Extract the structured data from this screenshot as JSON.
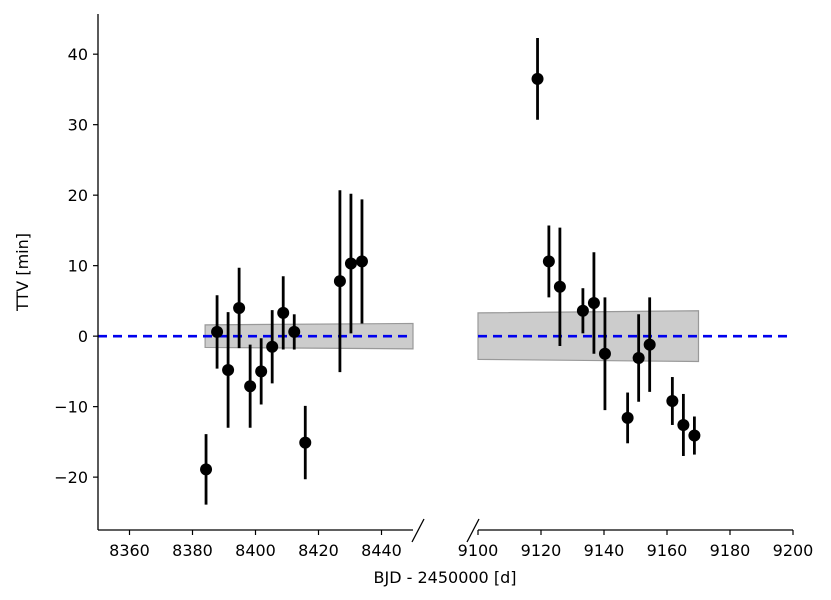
{
  "chart_data": [
    {
      "type": "scatter",
      "panel": "left",
      "xlabel": "",
      "ylabel": "TTV [min]",
      "xlim": [
        8350,
        8450
      ],
      "ylim": [
        -27.5,
        45.7
      ],
      "x_ticks": [
        8360,
        8380,
        8400,
        8420,
        8440
      ],
      "y_ticks": [
        -20,
        -10,
        0,
        10,
        20,
        30,
        40
      ],
      "y_tick_labels": [
        "−20",
        "−10",
        "0",
        "10",
        "20",
        "30",
        "40"
      ],
      "zero_line": {
        "y": 0,
        "style": "dashed",
        "color": "#0000ee"
      },
      "band": {
        "x": [
          8384,
          8450
        ],
        "y_start": [
          -1.6,
          1.6
        ],
        "y_end": [
          -1.8,
          1.8
        ],
        "color": "#cccccc"
      },
      "series": [
        {
          "points": [
            {
              "x": 8384.3,
              "y": -18.9,
              "err": 5.0
            },
            {
              "x": 8387.8,
              "y": 0.6,
              "err": 5.2
            },
            {
              "x": 8391.3,
              "y": -4.8,
              "err": 8.2
            },
            {
              "x": 8394.8,
              "y": 4.0,
              "err": 5.7
            },
            {
              "x": 8398.3,
              "y": -7.1,
              "err": 5.9
            },
            {
              "x": 8401.8,
              "y": -5.0,
              "err": 4.7
            },
            {
              "x": 8405.3,
              "y": -1.5,
              "err": 5.2
            },
            {
              "x": 8408.8,
              "y": 3.3,
              "err": 5.2
            },
            {
              "x": 8412.3,
              "y": 0.6,
              "err": 2.5
            },
            {
              "x": 8415.8,
              "y": -15.1,
              "err": 5.2
            },
            {
              "x": 8426.8,
              "y": 7.8,
              "err": 12.9
            },
            {
              "x": 8430.3,
              "y": 10.3,
              "err": 9.9
            },
            {
              "x": 8433.8,
              "y": 10.6,
              "err": 8.8
            }
          ]
        }
      ]
    },
    {
      "type": "scatter",
      "panel": "right",
      "xlabel": "BJD - 2450000 [d]",
      "ylabel": "",
      "xlim": [
        9100,
        9200
      ],
      "ylim": [
        -27.5,
        45.7
      ],
      "x_ticks": [
        9100,
        9120,
        9140,
        9160,
        9180,
        9200
      ],
      "zero_line": {
        "y": 0,
        "style": "dashed",
        "color": "#0000ee"
      },
      "band": {
        "x": [
          9100,
          9170
        ],
        "y_start": [
          -3.3,
          3.3
        ],
        "y_end": [
          -3.6,
          3.6
        ],
        "color": "#cccccc"
      },
      "series": [
        {
          "points": [
            {
              "x": 9118.9,
              "y": 36.5,
              "err": 5.8
            },
            {
              "x": 9122.5,
              "y": 10.6,
              "err": 5.1
            },
            {
              "x": 9126.0,
              "y": 7.0,
              "err": 8.4
            },
            {
              "x": 9133.3,
              "y": 3.6,
              "err": 3.2
            },
            {
              "x": 9136.8,
              "y": 4.7,
              "err": 7.2
            },
            {
              "x": 9140.3,
              "y": -2.5,
              "err": 8.0
            },
            {
              "x": 9147.5,
              "y": -11.6,
              "err": 3.6
            },
            {
              "x": 9151.0,
              "y": -3.1,
              "err": 6.2
            },
            {
              "x": 9154.5,
              "y": -1.2,
              "err": 6.7
            },
            {
              "x": 9161.7,
              "y": -9.2,
              "err": 3.4
            },
            {
              "x": 9165.2,
              "y": -12.6,
              "err": 4.4
            },
            {
              "x": 9168.7,
              "y": -14.1,
              "err": 2.7
            }
          ]
        }
      ]
    }
  ]
}
